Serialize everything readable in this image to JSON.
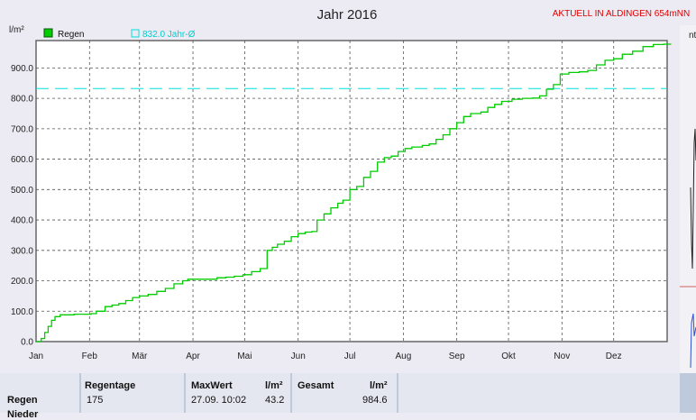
{
  "header": {
    "title": "Jahr 2016",
    "station_notice": "AKTUELL IN ALDINGEN 654mNN",
    "cropped_right_label": "nt"
  },
  "colors": {
    "rain": "#00cc00",
    "average": "#00e0e0",
    "notice": "#e00000",
    "grid": "#555555"
  },
  "chart_data": {
    "type": "line",
    "title": "Jahr 2016",
    "ylabel": "l/m²",
    "xlabel": "",
    "ylim": [
      0,
      990
    ],
    "yticks": [
      "0.0",
      "100.0",
      "200.0",
      "300.0",
      "400.0",
      "500.0",
      "600.0",
      "700.0",
      "800.0",
      "900.0"
    ],
    "x_tick_labels": [
      "Jan",
      "Feb",
      "Mär",
      "Apr",
      "Mai",
      "Jun",
      "Jul",
      "Aug",
      "Sep",
      "Okt",
      "Nov",
      "Dez"
    ],
    "grid": true,
    "legend": "top-left",
    "series": [
      {
        "name": "Regen",
        "style": "solid",
        "points": [
          [
            0,
            0
          ],
          [
            3,
            10
          ],
          [
            5,
            30
          ],
          [
            7,
            50
          ],
          [
            9,
            70
          ],
          [
            11,
            82
          ],
          [
            14,
            88
          ],
          [
            18,
            88
          ],
          [
            22,
            90
          ],
          [
            28,
            90
          ],
          [
            32,
            92
          ],
          [
            35,
            100
          ],
          [
            40,
            115
          ],
          [
            44,
            120
          ],
          [
            48,
            125
          ],
          [
            52,
            135
          ],
          [
            56,
            145
          ],
          [
            60,
            150
          ],
          [
            65,
            155
          ],
          [
            70,
            165
          ],
          [
            75,
            175
          ],
          [
            80,
            190
          ],
          [
            85,
            200
          ],
          [
            88,
            205
          ],
          [
            92,
            205
          ],
          [
            100,
            205
          ],
          [
            105,
            210
          ],
          [
            110,
            212
          ],
          [
            115,
            215
          ],
          [
            120,
            220
          ],
          [
            125,
            230
          ],
          [
            130,
            240
          ],
          [
            134,
            300
          ],
          [
            137,
            310
          ],
          [
            140,
            320
          ],
          [
            144,
            330
          ],
          [
            148,
            345
          ],
          [
            152,
            355
          ],
          [
            156,
            360
          ],
          [
            160,
            362
          ],
          [
            163,
            400
          ],
          [
            167,
            420
          ],
          [
            171,
            440
          ],
          [
            175,
            455
          ],
          [
            178,
            465
          ],
          [
            182,
            500
          ],
          [
            186,
            510
          ],
          [
            190,
            540
          ],
          [
            194,
            560
          ],
          [
            198,
            590
          ],
          [
            202,
            605
          ],
          [
            206,
            610
          ],
          [
            210,
            625
          ],
          [
            214,
            635
          ],
          [
            218,
            640
          ],
          [
            224,
            645
          ],
          [
            228,
            650
          ],
          [
            232,
            665
          ],
          [
            236,
            680
          ],
          [
            240,
            700
          ],
          [
            244,
            720
          ],
          [
            248,
            740
          ],
          [
            252,
            750
          ],
          [
            258,
            755
          ],
          [
            262,
            770
          ],
          [
            266,
            780
          ],
          [
            270,
            790
          ],
          [
            276,
            797
          ],
          [
            282,
            800
          ],
          [
            288,
            801
          ],
          [
            292,
            808
          ],
          [
            296,
            830
          ],
          [
            300,
            845
          ],
          [
            304,
            880
          ],
          [
            309,
            885
          ],
          [
            315,
            887
          ],
          [
            320,
            892
          ],
          [
            325,
            910
          ],
          [
            330,
            925
          ],
          [
            335,
            930
          ],
          [
            340,
            945
          ],
          [
            346,
            955
          ],
          [
            352,
            970
          ],
          [
            358,
            977
          ],
          [
            364,
            978
          ],
          [
            368,
            980
          ]
        ]
      },
      {
        "name": "832.0 Jahr-Ø",
        "style": "dashed",
        "constant": 832.0
      }
    ]
  },
  "stats": {
    "row_label": "Regen",
    "row_label_2": "Nieder",
    "regentage_label": "Regentage",
    "regentage_value": "175",
    "maxwert_label": "MaxWert",
    "maxwert_unit": "l/m²",
    "maxwert_date": "27.09.  10:02",
    "maxwert_value": "43.2",
    "gesamt_label": "Gesamt",
    "gesamt_unit": "l/m²",
    "gesamt_value": "984.6"
  }
}
